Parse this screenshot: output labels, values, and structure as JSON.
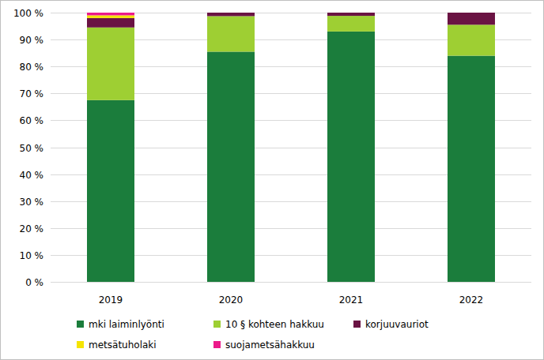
{
  "chart_data": {
    "type": "bar",
    "stacked": true,
    "grid": true,
    "legend": "bottom",
    "categories": [
      "2019",
      "2020",
      "2021",
      "2022"
    ],
    "series": [
      {
        "name": "mki laiminlyönti",
        "color": "#1b7d3c",
        "values": [
          67.5,
          85.5,
          93,
          84
        ]
      },
      {
        "name": "10 § kohteen hakkuu",
        "color": "#9ecf33",
        "values": [
          27,
          13.2,
          5.8,
          11.5
        ]
      },
      {
        "name": "korjuuvauriot",
        "color": "#6a1343",
        "values": [
          3.5,
          1.3,
          1.2,
          4.5
        ]
      },
      {
        "name": "metsätuholaki",
        "color": "#f5e400",
        "values": [
          1,
          0,
          0,
          0
        ]
      },
      {
        "name": "suojametsähakkuu",
        "color": "#ec1a8a",
        "values": [
          1,
          0,
          0,
          0
        ]
      }
    ],
    "ylim": [
      0,
      100
    ],
    "yticks": [
      {
        "value": 0,
        "label": "0 %"
      },
      {
        "value": 10,
        "label": "10 %"
      },
      {
        "value": 20,
        "label": "20 %"
      },
      {
        "value": 30,
        "label": "30 %"
      },
      {
        "value": 40,
        "label": "40 %"
      },
      {
        "value": 50,
        "label": "50 %"
      },
      {
        "value": 60,
        "label": "60 %"
      },
      {
        "value": 70,
        "label": "70 %"
      },
      {
        "value": 80,
        "label": "80 %"
      },
      {
        "value": 90,
        "label": "90 %"
      },
      {
        "value": 100,
        "label": "100 %"
      }
    ]
  }
}
